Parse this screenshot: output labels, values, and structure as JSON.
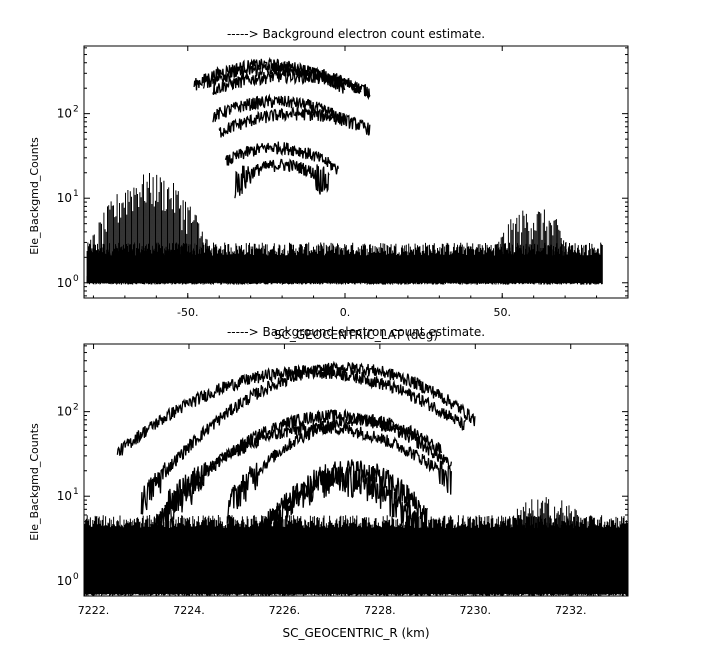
{
  "chart_data": [
    {
      "type": "line",
      "title": "-----> Background electron count estimate.",
      "xlabel": "SC_GEOCENTRIC_LAT (deg)",
      "ylabel": "Ele_Backgmd_Counts",
      "xlim": [
        -83,
        90
      ],
      "ylim_log10": [
        -0.18,
        2.8
      ],
      "yscale": "log",
      "xticks": [
        -50,
        0,
        50
      ],
      "xtick_labels": [
        "-50.",
        "0.",
        "50."
      ],
      "yticks": [
        1,
        10,
        100
      ],
      "color": "#000000",
      "noise_floor": {
        "x_range": [
          -82,
          82
        ],
        "value_range": [
          1,
          3
        ]
      },
      "side_lobes": [
        {
          "x_range": [
            -82,
            -42
          ],
          "center": -62,
          "peak": 20
        },
        {
          "x_range": [
            47,
            82
          ],
          "center": 60,
          "peak": 8
        }
      ],
      "series": [
        {
          "center": -25,
          "peak": 380,
          "width": 22,
          "x_range": [
            -48,
            0
          ]
        },
        {
          "center": -22,
          "peak": 340,
          "width": 26,
          "x_range": [
            -45,
            5
          ]
        },
        {
          "center": -18,
          "peak": 280,
          "width": 28,
          "x_range": [
            -42,
            8
          ]
        },
        {
          "center": -22,
          "peak": 140,
          "width": 22,
          "x_range": [
            -42,
            0
          ]
        },
        {
          "center": -15,
          "peak": 100,
          "width": 25,
          "x_range": [
            -40,
            8
          ]
        },
        {
          "center": -22,
          "peak": 40,
          "width": 18,
          "x_range": [
            -38,
            -2
          ]
        },
        {
          "center": -20,
          "peak": 25,
          "width": 15,
          "x_range": [
            -35,
            -5
          ]
        }
      ]
    },
    {
      "type": "line",
      "title": "-----> Background electron count estimate.",
      "xlabel": "SC_GEOCENTRIC_R (km)",
      "ylabel": "Ele_Backgmd_Counts",
      "xlim": [
        7221.8,
        7233.2
      ],
      "ylim_log10": [
        -0.18,
        2.8
      ],
      "yscale": "log",
      "xticks": [
        7222,
        7224,
        7226,
        7228,
        7230,
        7232
      ],
      "xtick_labels": [
        "7222.",
        "7224.",
        "7226.",
        "7228.",
        "7230.",
        "7232."
      ],
      "yticks": [
        1,
        10,
        100
      ],
      "color": "#000000",
      "noise_floor": {
        "x_range": [
          7221.8,
          7233.2
        ],
        "value_range": [
          0.7,
          6
        ]
      },
      "side_lobes": [
        {
          "x_range": [
            7229.8,
            7233.2
          ],
          "center": 7231.5,
          "peak": 10
        }
      ],
      "series": [
        {
          "center": 7227.3,
          "peak": 330,
          "width": 1.6,
          "x_range": [
            7223.0,
            7230.0
          ]
        },
        {
          "center": 7226.5,
          "peak": 300,
          "width": 1.9,
          "x_range": [
            7222.5,
            7229.8
          ]
        },
        {
          "center": 7227.0,
          "peak": 90,
          "width": 1.5,
          "x_range": [
            7223.2,
            7229.5
          ]
        },
        {
          "center": 7226.8,
          "peak": 65,
          "width": 1.6,
          "x_range": [
            7223.5,
            7229.5
          ]
        },
        {
          "center": 7227.6,
          "peak": 80,
          "width": 1.3,
          "x_range": [
            7224.8,
            7229.3
          ]
        },
        {
          "center": 7227.4,
          "peak": 20,
          "width": 1.0,
          "x_range": [
            7225.5,
            7229.0
          ]
        },
        {
          "center": 7227.2,
          "peak": 16,
          "width": 1.0,
          "x_range": [
            7225.5,
            7228.8
          ]
        }
      ]
    }
  ]
}
